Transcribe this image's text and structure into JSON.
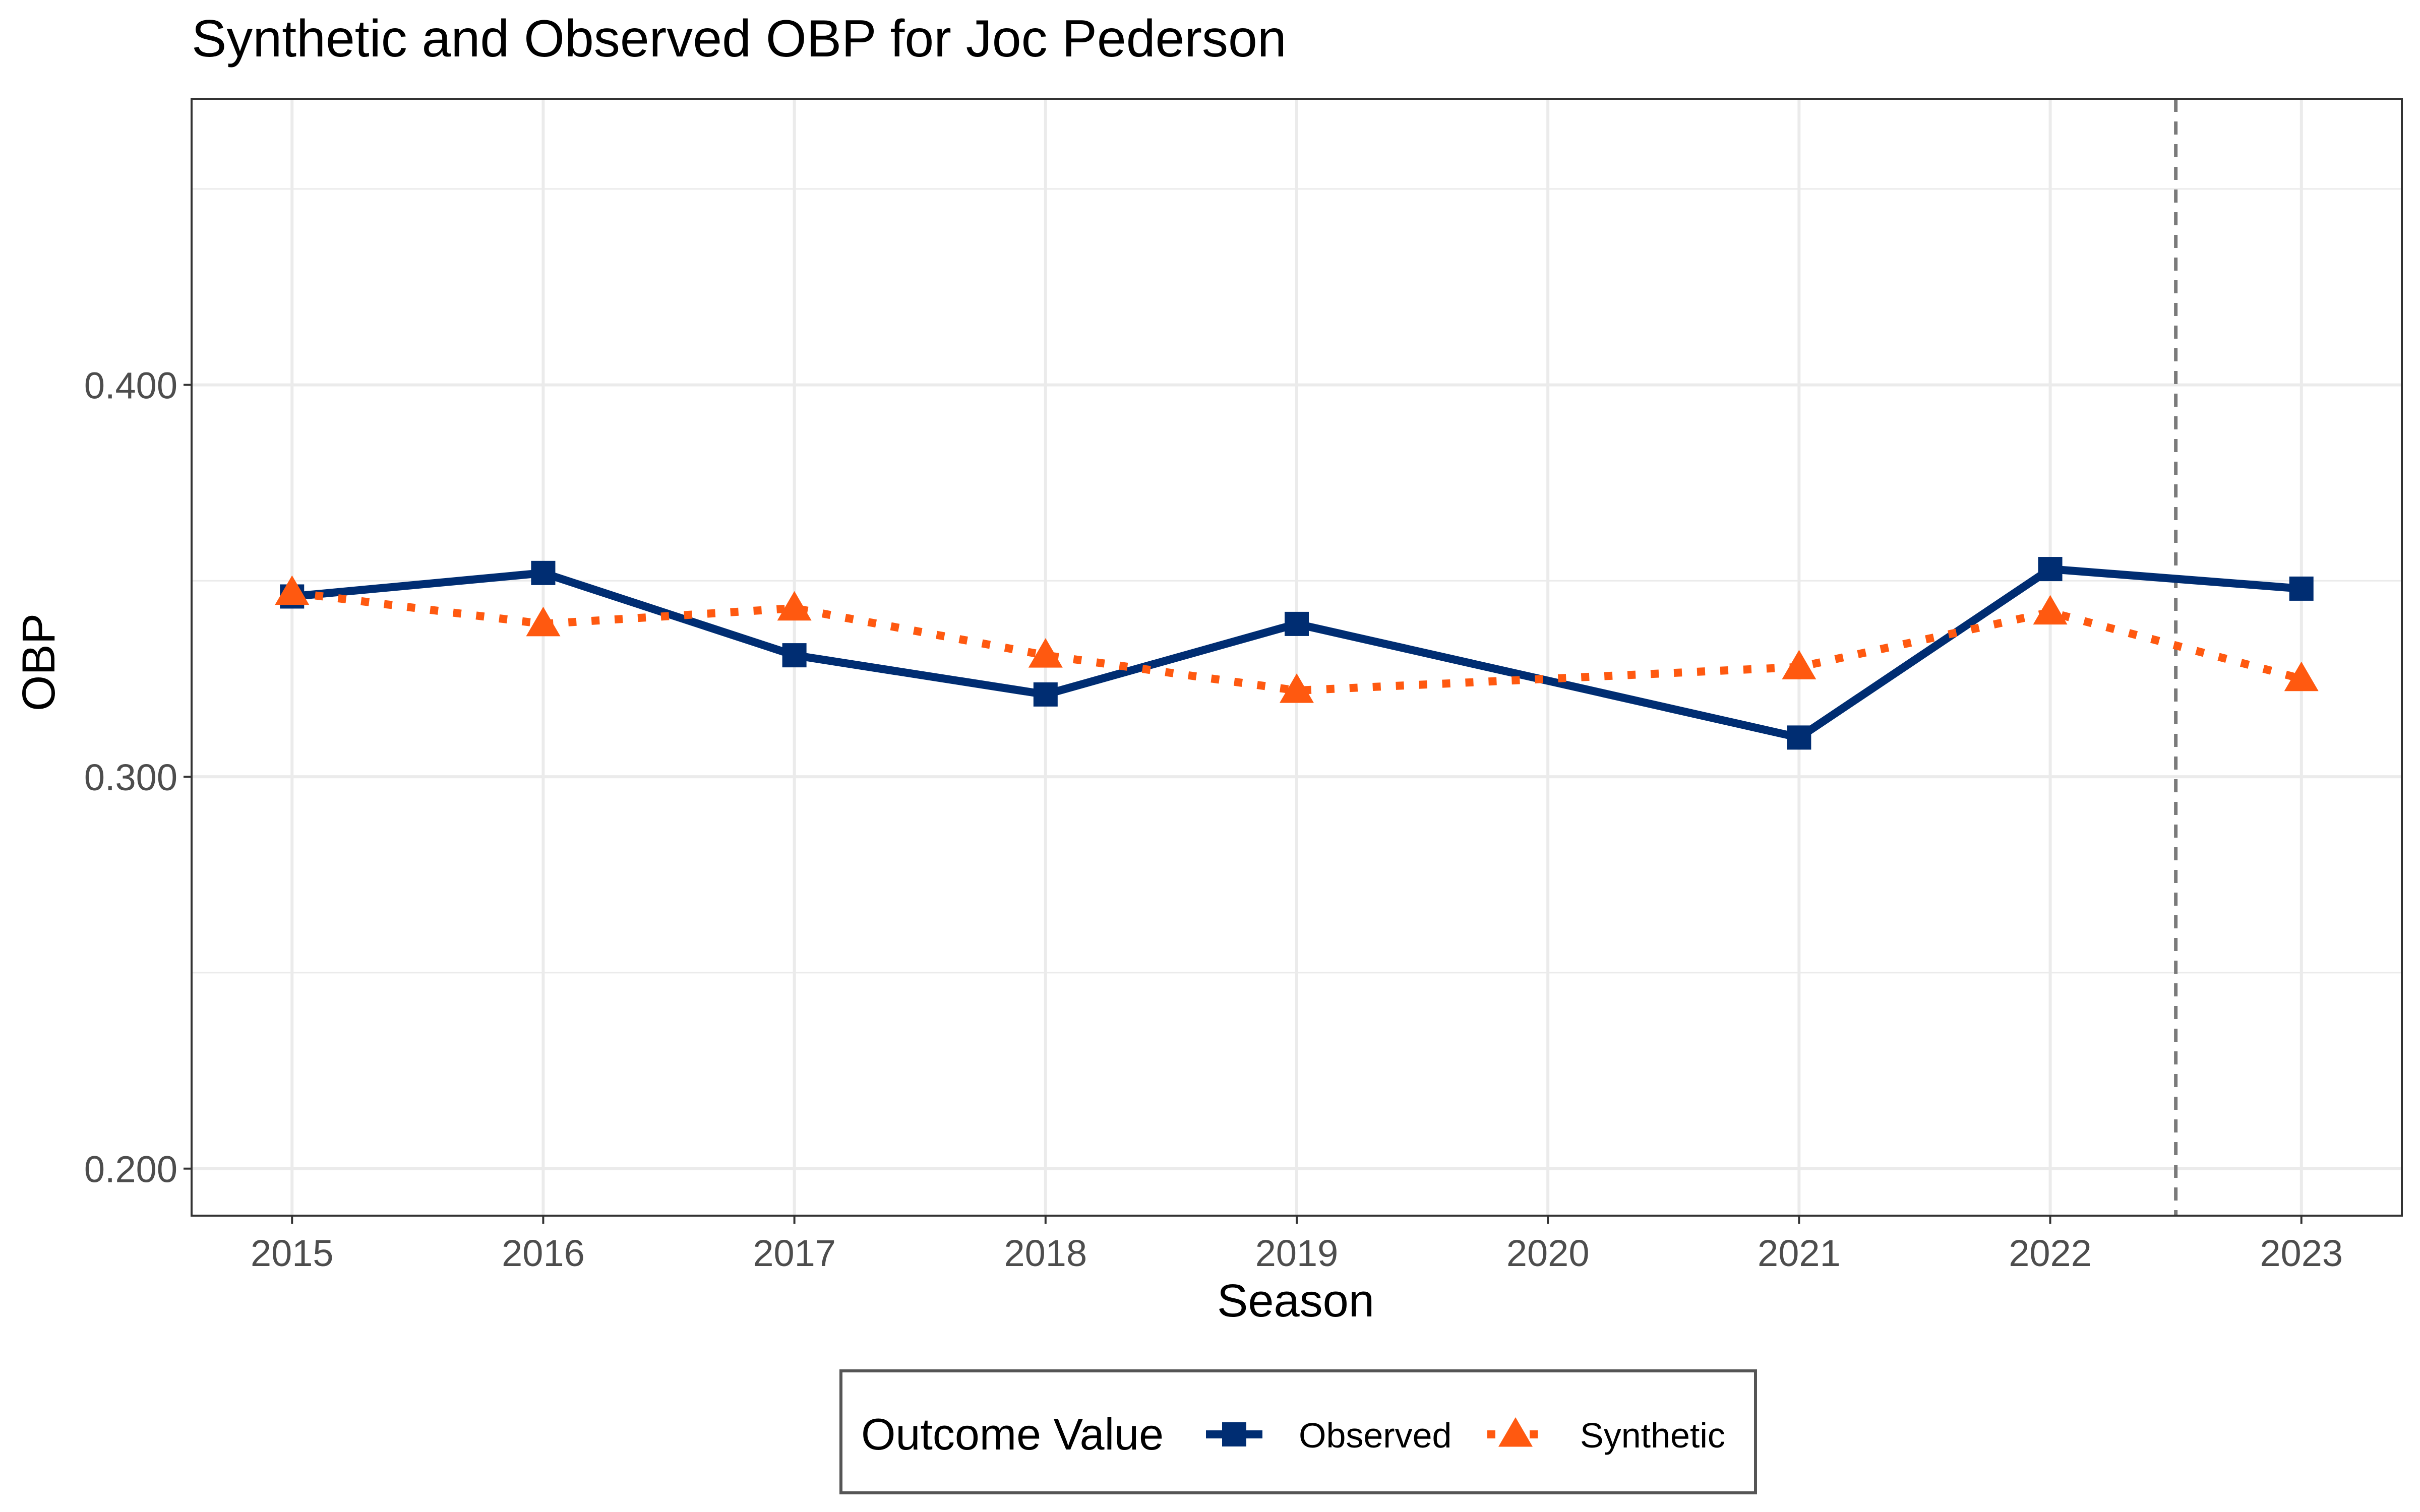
{
  "chart_data": {
    "type": "line",
    "title": "Synthetic and Observed OBP for Joc Pederson",
    "xlabel": "Season",
    "ylabel": "OBP",
    "x": [
      2015,
      2016,
      2017,
      2018,
      2019,
      2020,
      2021,
      2022,
      2023
    ],
    "x_tick_labels": [
      "2015",
      "2016",
      "2017",
      "2018",
      "2019",
      "2020",
      "2021",
      "2022",
      "2023"
    ],
    "xlim": [
      2014.6,
      2023.4
    ],
    "ylim": [
      0.188,
      0.473
    ],
    "y_ticks": [
      0.2,
      0.3,
      0.4
    ],
    "y_tick_labels": [
      "0.200",
      "0.300",
      "0.400"
    ],
    "y_minor_gridlines": [
      0.25,
      0.35,
      0.45
    ],
    "grid": true,
    "treatment_line_x": 2022.5,
    "series": [
      {
        "name": "Observed",
        "x": [
          2015,
          2016,
          2017,
          2018,
          2019,
          2021,
          2022,
          2023
        ],
        "values": [
          0.346,
          0.352,
          0.331,
          0.321,
          0.339,
          0.31,
          0.353,
          0.348
        ],
        "color": "#002D72",
        "line_style": "solid",
        "marker": "square"
      },
      {
        "name": "Synthetic",
        "x": [
          2015,
          2016,
          2017,
          2018,
          2019,
          2021,
          2022,
          2023
        ],
        "values": [
          0.347,
          0.339,
          0.343,
          0.331,
          0.322,
          0.328,
          0.342,
          0.325
        ],
        "color": "#FF5910",
        "line_style": "dotted",
        "marker": "triangle"
      }
    ],
    "legend": {
      "title": "Outcome Value",
      "position": "bottom",
      "entries": [
        "Observed",
        "Synthetic"
      ]
    }
  }
}
